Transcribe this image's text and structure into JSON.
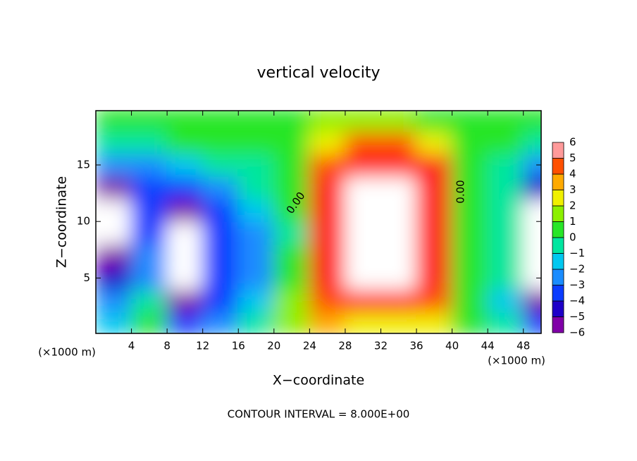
{
  "chart_data": {
    "type": "heatmap",
    "title": "vertical velocity",
    "x_label": "X−coordinate",
    "y_label": "Z−coordinate",
    "x_unit": "(×1000 m)",
    "y_unit": "(×1000 m)",
    "footer": "CONTOUR INTERVAL = 8.000E+00",
    "contour_labels": [
      "0.00",
      "0.00"
    ],
    "xlim": [
      0,
      50
    ],
    "ylim": [
      0.1,
      19.8
    ],
    "xticks": [
      4,
      8,
      12,
      16,
      20,
      24,
      28,
      32,
      36,
      40,
      44,
      48
    ],
    "yticks": [
      5,
      10,
      15
    ],
    "x": [
      2,
      6,
      10,
      14,
      18,
      22,
      26,
      30,
      34,
      38,
      42,
      46,
      50
    ],
    "y": [
      1,
      3,
      5,
      7,
      9,
      11,
      13,
      15,
      17,
      19
    ],
    "values": [
      [
        -2,
        0,
        -4,
        -3,
        -1,
        1,
        3,
        2,
        2,
        2,
        0,
        -1,
        -4
      ],
      [
        -3,
        -1,
        -6,
        -4,
        -2,
        1,
        4,
        5,
        6,
        4,
        0,
        -2,
        -6
      ],
      [
        -5,
        -3,
        -7,
        -4,
        -3,
        0.5,
        6,
        7,
        7,
        6,
        0,
        -1,
        -7
      ],
      [
        -6,
        -3,
        -7,
        -4,
        -3,
        0.5,
        6,
        7,
        7,
        5,
        0,
        -1,
        -7
      ],
      [
        -7,
        -4,
        -7,
        -4,
        -3,
        -0.5,
        5,
        7,
        7,
        5,
        0,
        -1,
        -7
      ],
      [
        -7,
        -4,
        -6,
        -4,
        -2,
        0,
        5,
        7,
        7,
        5,
        0,
        -1,
        -7
      ],
      [
        -6,
        -4,
        -4,
        -3,
        -1,
        0,
        5,
        7,
        7,
        5,
        0,
        -1,
        -5
      ],
      [
        -3,
        -3,
        -2,
        -1,
        -0.5,
        0.5,
        4,
        6,
        6,
        5,
        0,
        -1,
        -3
      ],
      [
        -1,
        -0.5,
        0,
        0,
        0,
        0.5,
        2,
        4,
        4,
        2,
        0,
        0,
        -0.5
      ],
      [
        0,
        0,
        0,
        0.5,
        0,
        0.5,
        1,
        1,
        1,
        0.5,
        0,
        0,
        0
      ]
    ],
    "colorbar": {
      "lim": [
        -6,
        6
      ],
      "ticks": [
        {
          "value": -6,
          "label": "−6"
        },
        {
          "value": -5,
          "label": "−5"
        },
        {
          "value": -4,
          "label": "−4"
        },
        {
          "value": -3,
          "label": "−3"
        },
        {
          "value": -2,
          "label": "−2"
        },
        {
          "value": -1,
          "label": "−1"
        },
        0,
        1,
        2,
        3,
        4,
        5,
        6
      ],
      "colors": [
        "#8000a8",
        "#1e00c8",
        "#0a3cff",
        "#1a8cff",
        "#00c8f0",
        "#00e6a0",
        "#28e628",
        "#8cf000",
        "#f0f000",
        "#ffaa00",
        "#ff5000",
        "#ff1e1e"
      ],
      "over_color": "#ffffff",
      "top_color": "#ff9a9a"
    }
  }
}
